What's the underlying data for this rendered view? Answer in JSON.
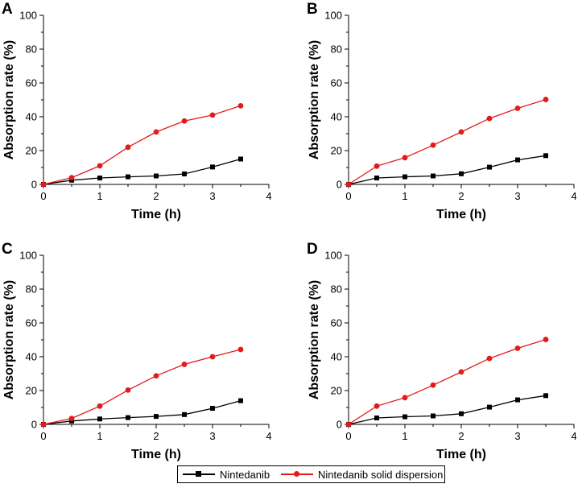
{
  "chart_data": [
    {
      "type": "line",
      "panel_label": "A",
      "xlabel": "Time (h)",
      "ylabel": "Absorption rate (%)",
      "xlim": [
        0,
        4
      ],
      "ylim": [
        0,
        100
      ],
      "x_ticks": [
        0,
        1,
        2,
        3,
        4
      ],
      "y_ticks": [
        0,
        20,
        40,
        60,
        80,
        100
      ],
      "series": [
        {
          "name": "Nintedanib",
          "color": "#000000",
          "marker": "square",
          "x": [
            0,
            0.5,
            1,
            1.5,
            2,
            2.5,
            3,
            3.5
          ],
          "y": [
            0,
            2.5,
            3.8,
            4.5,
            5.0,
            6.2,
            10.3,
            15.0
          ]
        },
        {
          "name": "Nintedanib solid dispersion",
          "color": "#e31a1c",
          "marker": "circle",
          "x": [
            0,
            0.5,
            1,
            1.5,
            2,
            2.5,
            3,
            3.5
          ],
          "y": [
            0,
            4.0,
            11.0,
            22.0,
            31.0,
            37.5,
            41.0,
            46.5
          ]
        }
      ]
    },
    {
      "type": "line",
      "panel_label": "B",
      "xlabel": "Time (h)",
      "ylabel": "Absorption rate (%)",
      "xlim": [
        0,
        4
      ],
      "ylim": [
        0,
        100
      ],
      "x_ticks": [
        0,
        1,
        2,
        3,
        4
      ],
      "y_ticks": [
        0,
        20,
        40,
        60,
        80,
        100
      ],
      "series": [
        {
          "name": "Nintedanib",
          "color": "#000000",
          "marker": "square",
          "x": [
            0,
            0.5,
            1,
            1.5,
            2,
            2.5,
            3,
            3.5
          ],
          "y": [
            0,
            3.8,
            4.5,
            5.0,
            6.3,
            10.2,
            14.5,
            17.0
          ]
        },
        {
          "name": "Nintedanib solid dispersion",
          "color": "#e31a1c",
          "marker": "circle",
          "x": [
            0,
            0.5,
            1,
            1.5,
            2,
            2.5,
            3,
            3.5
          ],
          "y": [
            0,
            10.8,
            15.8,
            23.2,
            31.0,
            39.0,
            45.0,
            50.2
          ]
        }
      ]
    },
    {
      "type": "line",
      "panel_label": "C",
      "xlabel": "Time (h)",
      "ylabel": "Absorption rate (%)",
      "xlim": [
        0,
        4
      ],
      "ylim": [
        0,
        100
      ],
      "x_ticks": [
        0,
        1,
        2,
        3,
        4
      ],
      "y_ticks": [
        0,
        20,
        40,
        60,
        80,
        100
      ],
      "series": [
        {
          "name": "Nintedanib",
          "color": "#000000",
          "marker": "square",
          "x": [
            0,
            0.5,
            1,
            1.5,
            2,
            2.5,
            3,
            3.5
          ],
          "y": [
            0,
            2.0,
            3.2,
            4.0,
            4.7,
            5.8,
            9.5,
            14.0
          ]
        },
        {
          "name": "Nintedanib solid dispersion",
          "color": "#e31a1c",
          "marker": "circle",
          "x": [
            0,
            0.5,
            1,
            1.5,
            2,
            2.5,
            3,
            3.5
          ],
          "y": [
            0,
            3.5,
            10.8,
            20.3,
            28.7,
            35.5,
            40.0,
            44.3
          ]
        }
      ]
    },
    {
      "type": "line",
      "panel_label": "D",
      "xlabel": "Time (h)",
      "ylabel": "Absorption rate (%)",
      "xlim": [
        0,
        4
      ],
      "ylim": [
        0,
        100
      ],
      "x_ticks": [
        0,
        1,
        2,
        3,
        4
      ],
      "y_ticks": [
        0,
        20,
        40,
        60,
        80,
        100
      ],
      "series": [
        {
          "name": "Nintedanib",
          "color": "#000000",
          "marker": "square",
          "x": [
            0,
            0.5,
            1,
            1.5,
            2,
            2.5,
            3,
            3.5
          ],
          "y": [
            0,
            3.8,
            4.5,
            5.0,
            6.3,
            10.2,
            14.5,
            17.0
          ]
        },
        {
          "name": "Nintedanib solid dispersion",
          "color": "#e31a1c",
          "marker": "circle",
          "x": [
            0,
            0.5,
            1,
            1.5,
            2,
            2.5,
            3,
            3.5
          ],
          "y": [
            0,
            10.8,
            15.8,
            23.2,
            31.0,
            39.0,
            45.0,
            50.2
          ]
        }
      ]
    }
  ],
  "legend": {
    "items": [
      {
        "label": "Nintedanib",
        "color": "#000000",
        "marker": "square"
      },
      {
        "label": "Nintedanib solid dispersion",
        "color": "#e31a1c",
        "marker": "circle"
      }
    ]
  }
}
